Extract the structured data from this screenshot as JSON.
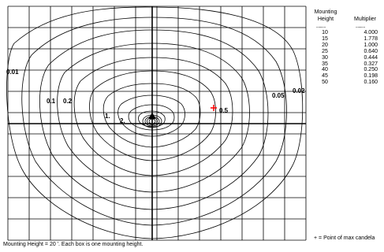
{
  "table": {
    "header_height_line1": "Mounting",
    "header_height_line2": "Height",
    "header_multiplier": "Multiplier",
    "separator": "..........",
    "rows": [
      {
        "height": "10",
        "multiplier": "4.000"
      },
      {
        "height": "15",
        "multiplier": "1.778"
      },
      {
        "height": "20",
        "multiplier": "1.000"
      },
      {
        "height": "25",
        "multiplier": "0.640"
      },
      {
        "height": "30",
        "multiplier": "0.444"
      },
      {
        "height": "35",
        "multiplier": "0.327"
      },
      {
        "height": "40",
        "multiplier": "0.250"
      },
      {
        "height": "45",
        "multiplier": "0.198"
      },
      {
        "height": "50",
        "multiplier": "0.160"
      }
    ]
  },
  "contour_labels": [
    "0.01",
    "0.1",
    "0.2",
    "1.",
    "2.",
    "0.5",
    "0.05",
    "0.02"
  ],
  "legend": "+ = Point of max candela",
  "footer": "Mounting Height =  20 '.  Each box is one mounting height.",
  "colors": {
    "grid": "#000000",
    "contour": "#000000",
    "max_point": "#ff0000"
  }
}
